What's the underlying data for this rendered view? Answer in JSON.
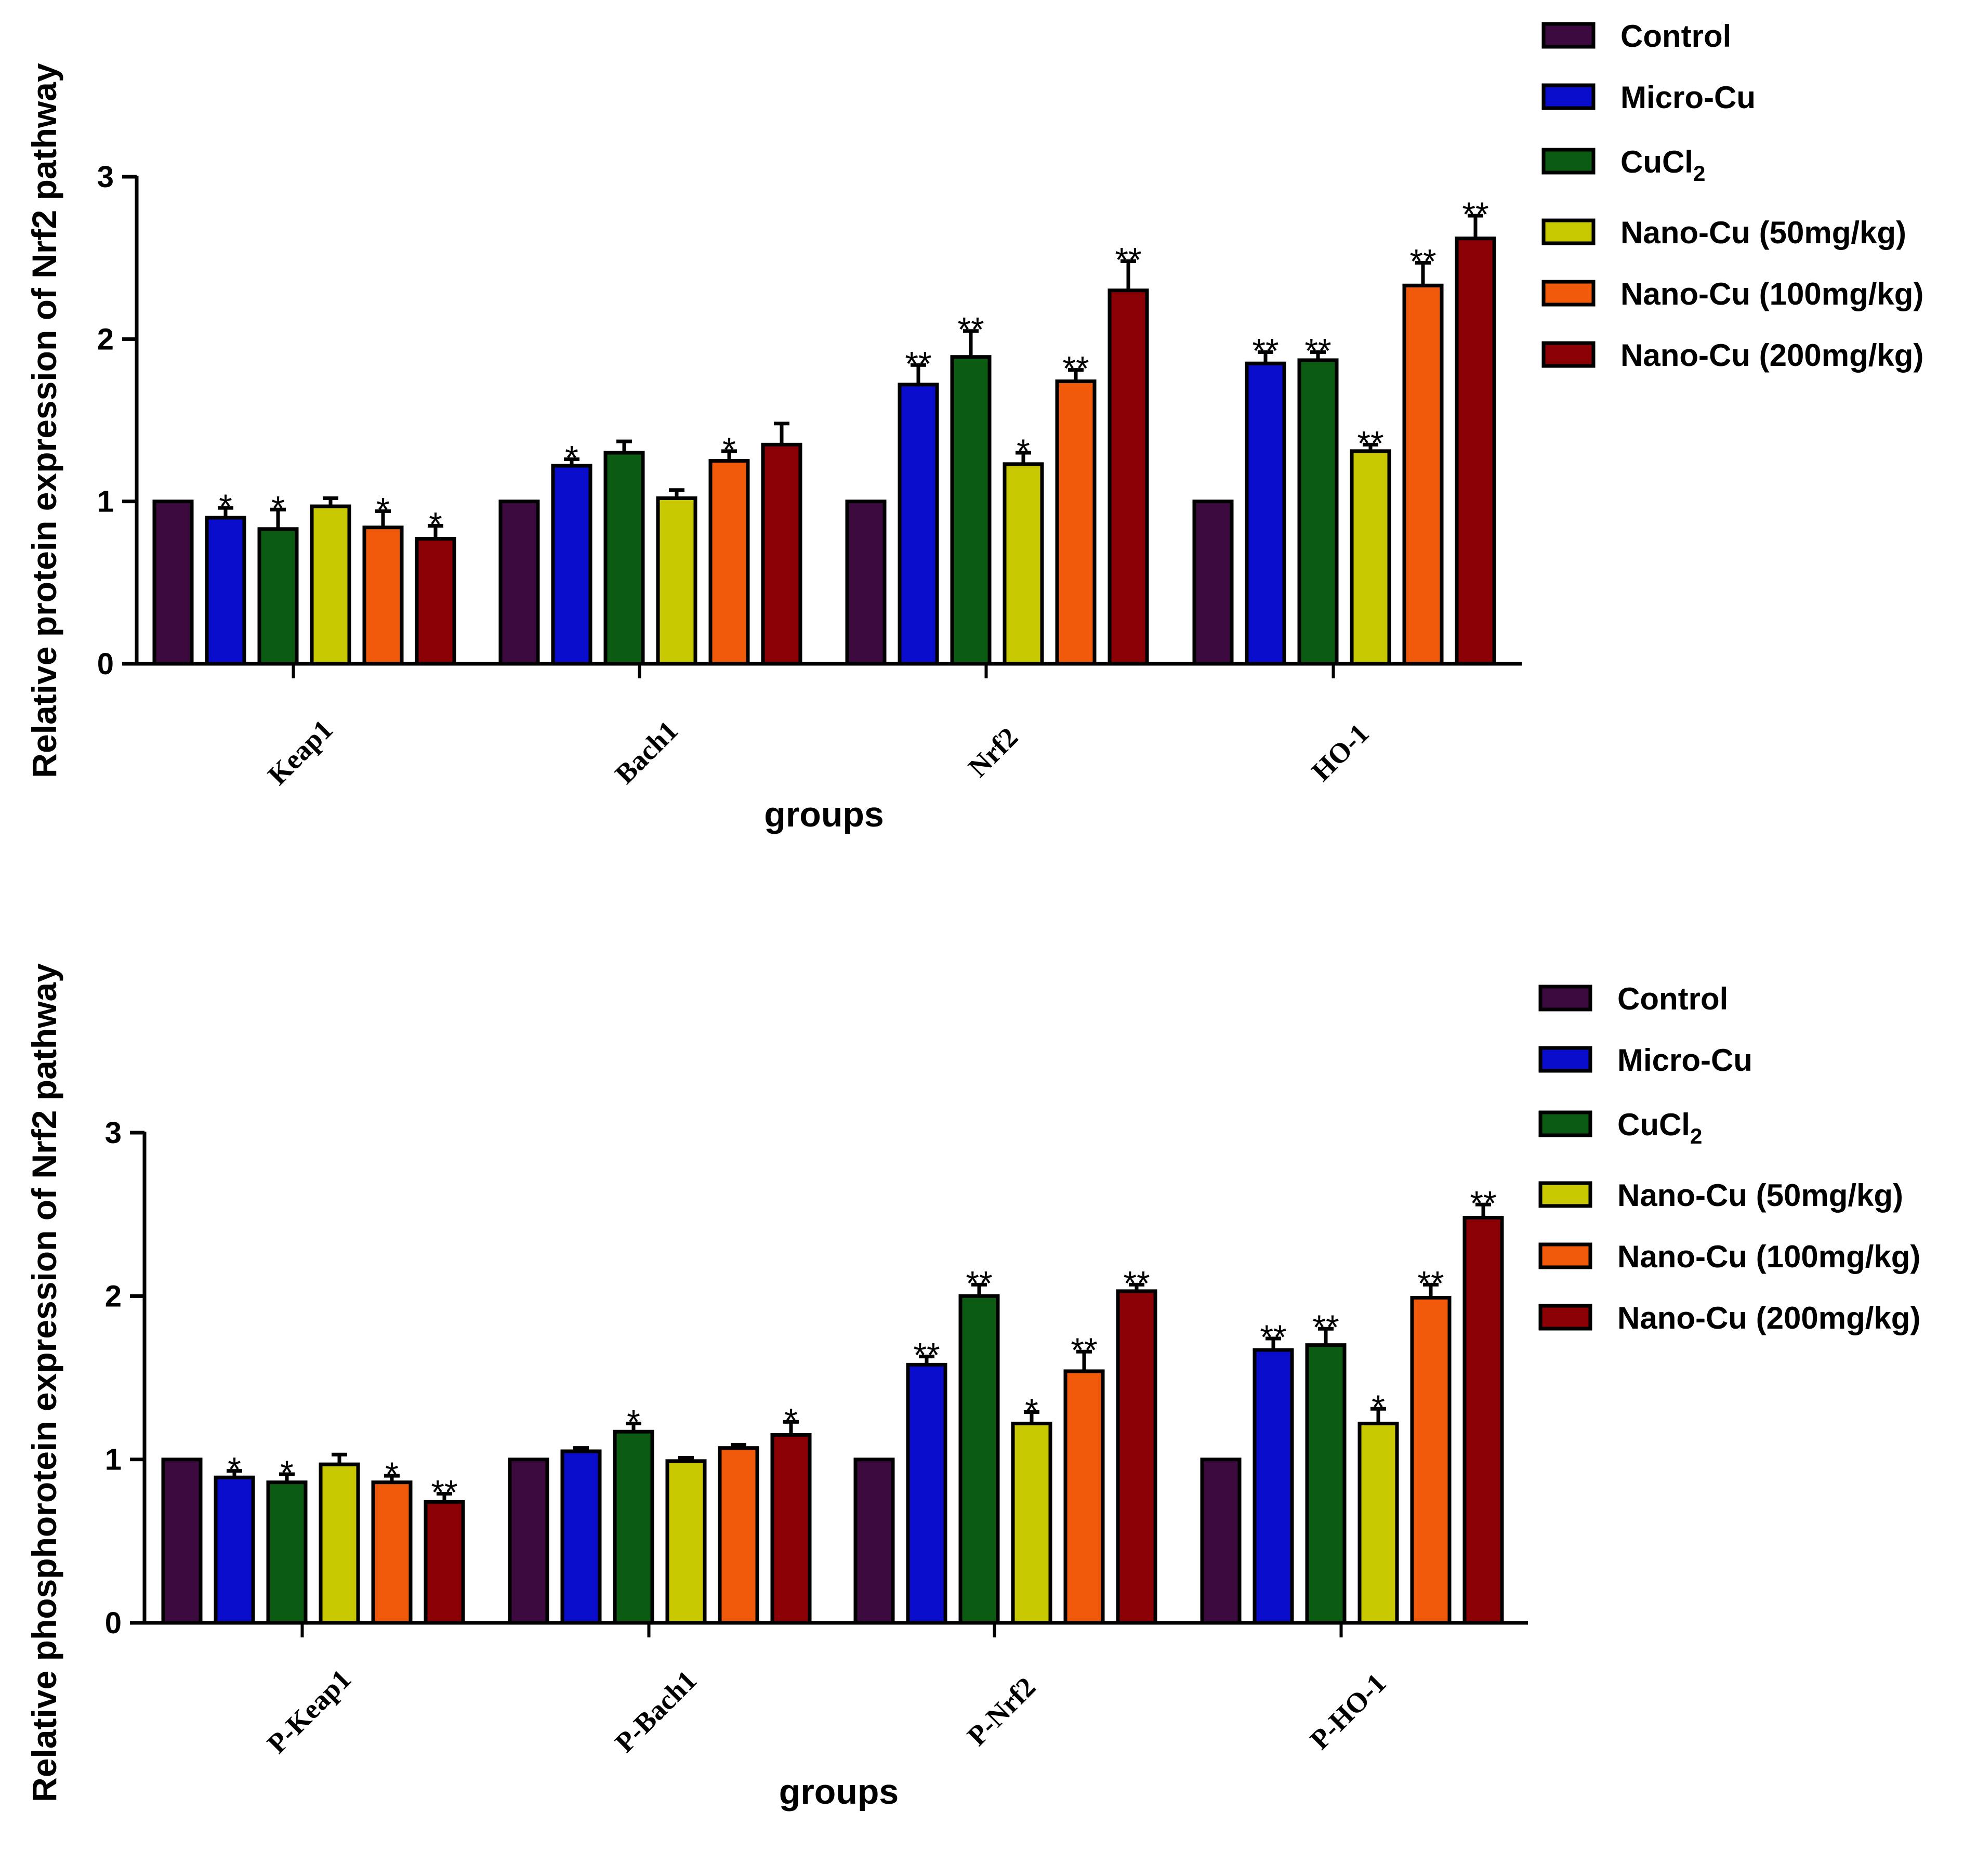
{
  "legend": {
    "entries": [
      "Control",
      "Micro-Cu",
      "CuCl",
      "Nano-Cu (50mg/kg)",
      "Nano-Cu (100mg/kg)",
      "Nano-Cu (200mg/kg)"
    ],
    "cucl_subscript": "2",
    "colors": [
      "#3d0a3f",
      "#0a0ccc",
      "#0b5c12",
      "#c8c800",
      "#f05a0a",
      "#8a0004"
    ]
  },
  "chart_data": [
    {
      "type": "bar",
      "ylabel": "Relative protein expression of Nrf2 pathway",
      "xlabel": "groups",
      "ylim": [
        0,
        3
      ],
      "yticks": [
        "0",
        "1",
        "2",
        "3"
      ],
      "legend_position": "top-right",
      "categories": [
        "Keap1",
        "Bach1",
        "Nrf2",
        "HO-1"
      ],
      "series": [
        {
          "name": "Control",
          "values": [
            1.0,
            1.0,
            1.0,
            1.0
          ],
          "errors": [
            0,
            0,
            0,
            0
          ],
          "sig": [
            "",
            "",
            "",
            ""
          ]
        },
        {
          "name": "Micro-Cu",
          "values": [
            0.9,
            1.22,
            1.72,
            1.85
          ],
          "errors": [
            0.06,
            0.04,
            0.12,
            0.07
          ],
          "sig": [
            "*",
            "*",
            "**",
            "**"
          ]
        },
        {
          "name": "CuCl2",
          "values": [
            0.83,
            1.3,
            1.89,
            1.87
          ],
          "errors": [
            0.12,
            0.07,
            0.16,
            0.05
          ],
          "sig": [
            "*",
            "",
            "**",
            "**"
          ]
        },
        {
          "name": "Nano-Cu (50mg/kg)",
          "values": [
            0.97,
            1.02,
            1.23,
            1.31
          ],
          "errors": [
            0.05,
            0.05,
            0.07,
            0.04
          ],
          "sig": [
            "",
            "",
            "*",
            "**"
          ]
        },
        {
          "name": "Nano-Cu (100mg/kg)",
          "values": [
            0.84,
            1.25,
            1.74,
            2.33
          ],
          "errors": [
            0.1,
            0.06,
            0.07,
            0.14
          ],
          "sig": [
            "*",
            "*",
            "**",
            "**"
          ]
        },
        {
          "name": "Nano-Cu (200mg/kg)",
          "values": [
            0.77,
            1.35,
            2.3,
            2.62
          ],
          "errors": [
            0.08,
            0.13,
            0.18,
            0.14
          ],
          "sig": [
            "*",
            "",
            "**",
            "**"
          ]
        }
      ]
    },
    {
      "type": "bar",
      "ylabel": "Relative phosphorotein expression of Nrf2 pathway",
      "xlabel": "groups",
      "ylim": [
        0,
        3
      ],
      "yticks": [
        "0",
        "1",
        "2",
        "3"
      ],
      "legend_position": "right",
      "categories": [
        "P-Keap1",
        "P-Bach1",
        "P-Nrf2",
        "P-HO-1"
      ],
      "series": [
        {
          "name": "Control",
          "values": [
            1.0,
            1.0,
            1.0,
            1.0
          ],
          "errors": [
            0,
            0,
            0,
            0
          ],
          "sig": [
            "",
            "",
            "",
            ""
          ]
        },
        {
          "name": "Micro-Cu",
          "values": [
            0.89,
            1.05,
            1.58,
            1.67
          ],
          "errors": [
            0.04,
            0.02,
            0.05,
            0.07
          ],
          "sig": [
            "*",
            "",
            "**",
            "**"
          ]
        },
        {
          "name": "CuCl2",
          "values": [
            0.86,
            1.17,
            2.0,
            1.7
          ],
          "errors": [
            0.05,
            0.05,
            0.07,
            0.1
          ],
          "sig": [
            "*",
            "*",
            "**",
            "**"
          ]
        },
        {
          "name": "Nano-Cu (50mg/kg)",
          "values": [
            0.97,
            0.99,
            1.22,
            1.22
          ],
          "errors": [
            0.06,
            0.02,
            0.07,
            0.09
          ],
          "sig": [
            "",
            "",
            "*",
            "*"
          ]
        },
        {
          "name": "Nano-Cu (100mg/kg)",
          "values": [
            0.86,
            1.07,
            1.54,
            1.99
          ],
          "errors": [
            0.04,
            0.02,
            0.12,
            0.08
          ],
          "sig": [
            "*",
            "",
            "**",
            "**"
          ]
        },
        {
          "name": "Nano-Cu (200mg/kg)",
          "values": [
            0.74,
            1.15,
            2.03,
            2.48
          ],
          "errors": [
            0.05,
            0.08,
            0.04,
            0.08
          ],
          "sig": [
            "**",
            "*",
            "**",
            "**"
          ]
        }
      ]
    }
  ]
}
